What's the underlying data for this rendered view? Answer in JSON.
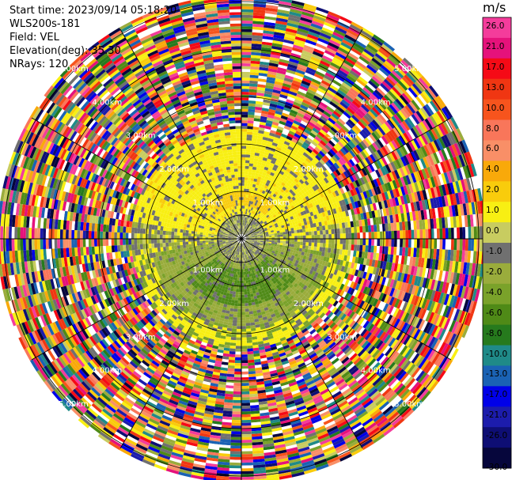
{
  "header": {
    "start_time": "Start time: 2023/09/14 05:18:20",
    "instrument": "WLS200s-181",
    "field": "Field: VEL",
    "elevation": "Elevation(deg): 35.30",
    "nrays": "NRays: 120"
  },
  "chart_data": {
    "type": "heatmap",
    "projection": "polar-ppi",
    "field": "VEL",
    "n_rays": 120,
    "elevation_deg": 35.3,
    "range_rings_km": [
      1,
      2,
      3,
      4,
      5
    ],
    "ring_labels": [
      "1.00km",
      "2.00km",
      "3.00km",
      "4.00km",
      "5.00km"
    ],
    "colorbar": {
      "unit": "m/s",
      "range": [
        -30,
        30
      ],
      "ticks": [
        "26.0",
        "21.0",
        "17.0",
        "13.0",
        "10.0",
        "8.0",
        "6.0",
        "4.0",
        "2.0",
        "1.0",
        "0.0",
        "-1.0",
        "-2.0",
        "-4.0",
        "-6.0",
        "-8.0",
        "-10.0",
        "-13.0",
        "-17.0",
        "-21.0",
        "-26.0",
        "-30.0"
      ],
      "colors": [
        "#f43c9b",
        "#e5127b",
        "#f50a16",
        "#f03612",
        "#f7541d",
        "#f9765a",
        "#f98f67",
        "#f9a90a",
        "#f9cc0c",
        "#f8ef13",
        "#c8cc60",
        "#707070",
        "#9aac3c",
        "#7aa22a",
        "#4f8a17",
        "#267a1d",
        "#1f8a88",
        "#1a62b4",
        "#0000e8",
        "#1c1cac",
        "#0e0e74",
        "#06063c"
      ]
    },
    "regions": [
      {
        "r_km": [
          0.0,
          0.5
        ],
        "description_velocity_m_s": "near-zero mixed"
      },
      {
        "r_km": [
          0.5,
          2.3
        ],
        "azimuth": "north",
        "velocity_m_s": 2.0
      },
      {
        "r_km": [
          0.5,
          2.3
        ],
        "azimuth": "south",
        "velocity_m_s": -4.0
      },
      {
        "r_km": [
          2.3,
          5.2
        ],
        "velocity_m_s": "noise"
      }
    ]
  }
}
